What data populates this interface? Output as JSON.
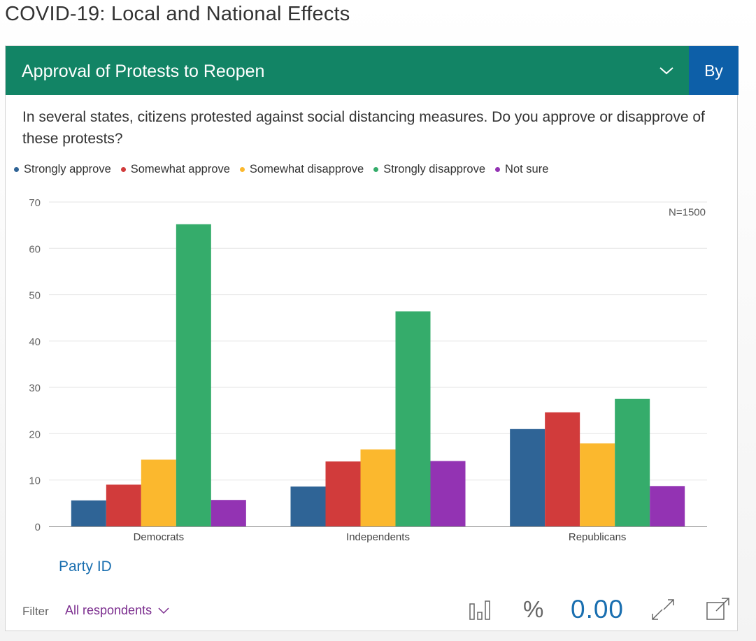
{
  "page": {
    "title": "COVID-19: Local and National Effects"
  },
  "header": {
    "title": "Approval of Protests to Reopen",
    "by_label": "By"
  },
  "question": "In several states, citizens protested against social distancing measures. Do you approve or disapprove of these protests?",
  "colors": {
    "header_bg": "#128465",
    "by_bg": "#0d5fa8",
    "link": "#1a6fb0",
    "filter": "#7b2d8e"
  },
  "chart_data": {
    "type": "bar",
    "categories": [
      "Democrats",
      "Independents",
      "Republicans"
    ],
    "series": [
      {
        "name": "Strongly approve",
        "color": "#2f6496",
        "values": [
          5.6,
          8.6,
          21.0
        ]
      },
      {
        "name": "Somewhat approve",
        "color": "#d13b3b",
        "values": [
          9.0,
          14.0,
          24.6
        ]
      },
      {
        "name": "Somewhat disapprove",
        "color": "#fbb82e",
        "values": [
          14.4,
          16.6,
          17.9
        ]
      },
      {
        "name": "Strongly disapprove",
        "color": "#35ac6b",
        "values": [
          65.2,
          46.4,
          27.5
        ]
      },
      {
        "name": "Not sure",
        "color": "#9333b3",
        "values": [
          5.7,
          14.1,
          8.7
        ]
      }
    ],
    "yticks": [
      0,
      10,
      20,
      30,
      40,
      50,
      60,
      70
    ],
    "ylim": [
      0,
      70
    ],
    "grid": true,
    "legend": "top-left",
    "annotation": "N=1500"
  },
  "axis": {
    "x_title": "Party ID"
  },
  "filter": {
    "label": "Filter",
    "value": "All respondents"
  },
  "toolbar": {
    "chart_type_icon": "bar-chart-icon",
    "percent_label": "%",
    "decimals_label": "0.00",
    "swap_icon": "swap-axes-icon",
    "export_icon": "external-link-icon"
  }
}
